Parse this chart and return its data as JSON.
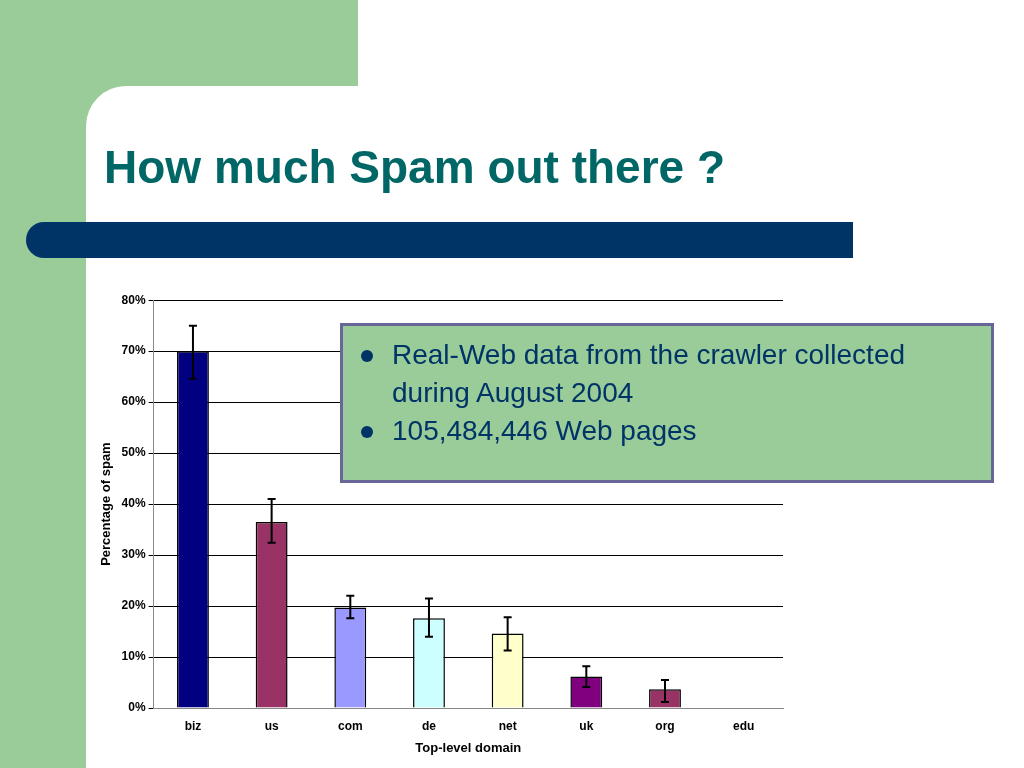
{
  "chart_data": {
    "type": "bar",
    "title": "How much Spam out there ?",
    "xlabel": "Top-level domain",
    "ylabel": "Percentage of spam",
    "categories": [
      "biz",
      "us",
      "com",
      "de",
      "net",
      "uk",
      "org",
      "edu"
    ],
    "values": [
      70,
      36.5,
      19.7,
      17.6,
      14.6,
      6.2,
      3.7,
      0
    ],
    "colors": [
      "#000080",
      "#993366",
      "#9999ff",
      "#ccffff",
      "#ffffcc",
      "#800080",
      "#993366",
      "#ffffff"
    ],
    "errors": [
      [
        64.6,
        75
      ],
      [
        32.4,
        41
      ],
      [
        17.6,
        22
      ],
      [
        14,
        21.5
      ],
      [
        11.3,
        17.8
      ],
      [
        4.1,
        8.2
      ],
      [
        1.2,
        5.5
      ],
      null
    ],
    "ylim": [
      0,
      80
    ],
    "yticks": [
      {
        "value": 0,
        "label": "0%"
      },
      {
        "value": 10,
        "label": "10%"
      },
      {
        "value": 20,
        "label": "20%"
      },
      {
        "value": 30,
        "label": "30%"
      },
      {
        "value": 40,
        "label": "40%"
      },
      {
        "value": 50,
        "label": "50%"
      },
      {
        "value": 60,
        "label": "60%"
      },
      {
        "value": 70,
        "label": "70%"
      },
      {
        "value": 80,
        "label": "80%"
      }
    ],
    "grid": "y",
    "legend": false,
    "annotations": [
      "Real-Web data from the crawler collected during August 2004",
      "105,484,446 Web pages"
    ]
  }
}
